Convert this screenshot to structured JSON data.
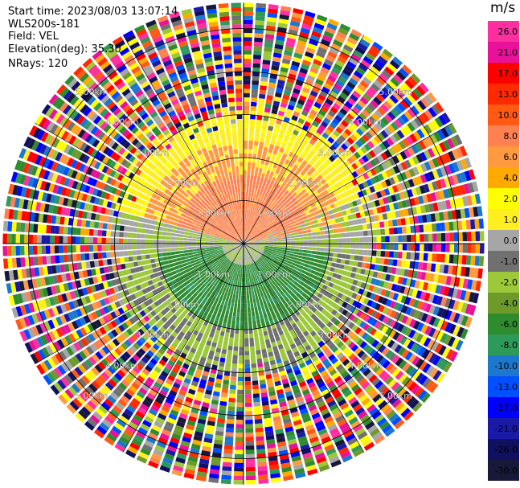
{
  "header": {
    "start_time": "Start time: 2023/08/03 13:07:14",
    "instrument": "WLS200s-181",
    "field": "Field: VEL",
    "elevation": "Elevation(deg): 35.30",
    "nrays": "NRays: 120"
  },
  "colorbar": {
    "unit": "m/s",
    "ticks": [
      "26.0",
      "21.0",
      "17.0",
      "13.0",
      "10.0",
      "8.0",
      "6.0",
      "4.0",
      "2.0",
      "1.0",
      "0.0",
      "-1.0",
      "-2.0",
      "-4.0",
      "-6.0",
      "-8.0",
      "-10.0",
      "-13.0",
      "-17.0",
      "-21.0",
      "-26.0",
      "-30.0"
    ],
    "colors": [
      "#ff2fa0",
      "#e8129a",
      "#ff0000",
      "#ff2a00",
      "#ff5a14",
      "#ff8050",
      "#ff9a40",
      "#ffaa00",
      "#ffff00",
      "#ffee20",
      "#a6a6a6",
      "#707070",
      "#9cc83a",
      "#6d9a2a",
      "#2e8b2e",
      "#2e9a5a",
      "#1b78cc",
      "#0050ff",
      "#0000ff",
      "#1a1aa6",
      "#101060",
      "#181838"
    ]
  },
  "chart_data": {
    "type": "heatmap",
    "projection": "polar-ppi",
    "field": "VEL",
    "units": "m/s",
    "nrays": 120,
    "range_rings_km": [
      1.0,
      2.0,
      3.0,
      4.0,
      5.0
    ],
    "ring_labels": [
      "1.00km",
      "2.00km",
      "3.00km",
      "4.00km",
      "5.00km"
    ],
    "max_range_km": 5.6,
    "spokes_deg": [
      0,
      30,
      60,
      90,
      120,
      150
    ],
    "vmin": -30.0,
    "vmax": 26.0,
    "pattern": {
      "positive_sector_deg": [
        270,
        90
      ],
      "positive_color_near": "#ff8050",
      "positive_color_edge": "#ffee20",
      "negative_sector_deg": [
        90,
        270
      ],
      "negative_color_near": "#2e8b2e",
      "negative_color_mid": "#9cc83a",
      "clean_range_km": 3.0,
      "noise_beyond_km": 3.0
    }
  }
}
